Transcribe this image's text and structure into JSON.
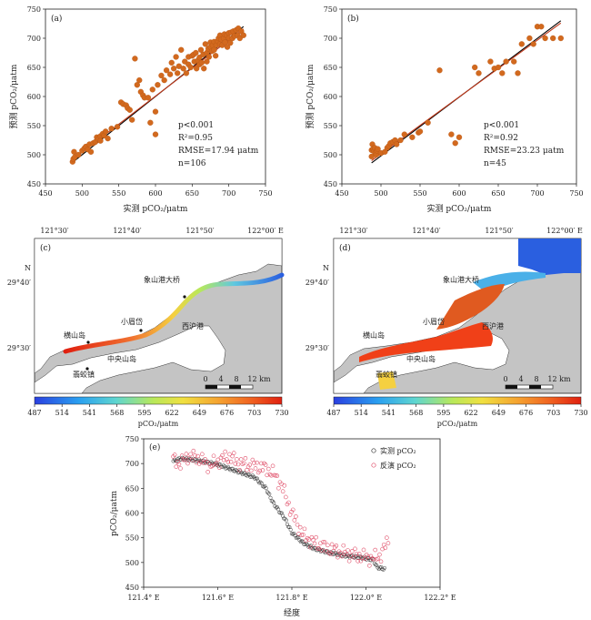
{
  "chart_data": [
    {
      "id": "a",
      "type": "scatter",
      "panel_label": "(a)",
      "xlabel": "实测 pCO₂/μatm",
      "ylabel": "预测 pCO₂/μatm",
      "xlim": [
        450,
        750
      ],
      "ylim": [
        450,
        750
      ],
      "xticks": [
        450,
        500,
        550,
        600,
        650,
        700,
        750
      ],
      "yticks": [
        450,
        500,
        550,
        600,
        650,
        700,
        750
      ],
      "stats": [
        "p<0.001",
        "R²=0.95",
        "RMSE=17.94 μatm",
        "n=106"
      ],
      "fit_lines": [
        {
          "color": "#000000",
          "x": [
            487,
            720
          ],
          "y": [
            487,
            720
          ]
        },
        {
          "color": "#c0391b",
          "x": [
            487,
            720
          ],
          "y": [
            492,
            716
          ]
        }
      ],
      "marker_color": "#d2691e",
      "points": [
        [
          487,
          488
        ],
        [
          488,
          493
        ],
        [
          490,
          496
        ],
        [
          489,
          505
        ],
        [
          495,
          500
        ],
        [
          500,
          507
        ],
        [
          503,
          511
        ],
        [
          505,
          514
        ],
        [
          508,
          509
        ],
        [
          510,
          518
        ],
        [
          512,
          505
        ],
        [
          515,
          520
        ],
        [
          518,
          522
        ],
        [
          520,
          530
        ],
        [
          522,
          527
        ],
        [
          525,
          532
        ],
        [
          525,
          524
        ],
        [
          528,
          536
        ],
        [
          530,
          533
        ],
        [
          532,
          540
        ],
        [
          535,
          528
        ],
        [
          540,
          545
        ],
        [
          548,
          548
        ],
        [
          553,
          590
        ],
        [
          556,
          587
        ],
        [
          560,
          585
        ],
        [
          562,
          580
        ],
        [
          565,
          577
        ],
        [
          568,
          560
        ],
        [
          572,
          665
        ],
        [
          575,
          620
        ],
        [
          578,
          628
        ],
        [
          580,
          608
        ],
        [
          583,
          602
        ],
        [
          585,
          598
        ],
        [
          590,
          598
        ],
        [
          593,
          555
        ],
        [
          596,
          612
        ],
        [
          600,
          574
        ],
        [
          600,
          535
        ],
        [
          603,
          620
        ],
        [
          608,
          636
        ],
        [
          612,
          628
        ],
        [
          615,
          645
        ],
        [
          620,
          638
        ],
        [
          622,
          658
        ],
        [
          625,
          648
        ],
        [
          628,
          668
        ],
        [
          630,
          640
        ],
        [
          632,
          652
        ],
        [
          635,
          680
        ],
        [
          638,
          648
        ],
        [
          640,
          660
        ],
        [
          642,
          640
        ],
        [
          645,
          668
        ],
        [
          645,
          655
        ],
        [
          648,
          650
        ],
        [
          650,
          670
        ],
        [
          652,
          672
        ],
        [
          653,
          660
        ],
        [
          655,
          675
        ],
        [
          656,
          648
        ],
        [
          658,
          662
        ],
        [
          660,
          667
        ],
        [
          660,
          655
        ],
        [
          662,
          680
        ],
        [
          663,
          658
        ],
        [
          665,
          672
        ],
        [
          666,
          648
        ],
        [
          668,
          690
        ],
        [
          670,
          660
        ],
        [
          670,
          675
        ],
        [
          672,
          682
        ],
        [
          673,
          668
        ],
        [
          675,
          685
        ],
        [
          675,
          693
        ],
        [
          677,
          678
        ],
        [
          678,
          688
        ],
        [
          680,
          694
        ],
        [
          680,
          680
        ],
        [
          682,
          670
        ],
        [
          683,
          688
        ],
        [
          685,
          695
        ],
        [
          686,
          700
        ],
        [
          688,
          690
        ],
        [
          688,
          705
        ],
        [
          690,
          698
        ],
        [
          691,
          688
        ],
        [
          693,
          700
        ],
        [
          694,
          707
        ],
        [
          695,
          693
        ],
        [
          697,
          705
        ],
        [
          698,
          685
        ],
        [
          700,
          709
        ],
        [
          700,
          700
        ],
        [
          702,
          692
        ],
        [
          703,
          710
        ],
        [
          705,
          700
        ],
        [
          706,
          712
        ],
        [
          708,
          704
        ],
        [
          710,
          714
        ],
        [
          712,
          705
        ],
        [
          713,
          717
        ],
        [
          715,
          700
        ],
        [
          717,
          712
        ],
        [
          720,
          705
        ]
      ]
    },
    {
      "id": "b",
      "type": "scatter",
      "panel_label": "(b)",
      "xlabel": "实测 pCO₂/μatm",
      "ylabel": "预测 pCO₂/μatm",
      "xlim": [
        450,
        750
      ],
      "ylim": [
        450,
        750
      ],
      "xticks": [
        450,
        500,
        550,
        600,
        650,
        700,
        750
      ],
      "yticks": [
        450,
        500,
        550,
        600,
        650,
        700,
        750
      ],
      "stats": [
        "p<0.001",
        "R²=0.92",
        "RMSE=23.23 μatm",
        "n=45"
      ],
      "fit_lines": [
        {
          "color": "#000000",
          "x": [
            488,
            730
          ],
          "y": [
            486,
            730
          ]
        },
        {
          "color": "#c0391b",
          "x": [
            488,
            730
          ],
          "y": [
            490,
            726
          ]
        }
      ],
      "marker_color": "#d2691e",
      "points": [
        [
          488,
          497
        ],
        [
          488,
          508
        ],
        [
          489,
          518
        ],
        [
          490,
          510
        ],
        [
          491,
          506
        ],
        [
          492,
          512
        ],
        [
          493,
          503
        ],
        [
          494,
          500
        ],
        [
          495,
          507
        ],
        [
          496,
          510
        ],
        [
          500,
          503
        ],
        [
          505,
          505
        ],
        [
          508,
          512
        ],
        [
          510,
          515
        ],
        [
          512,
          520
        ],
        [
          515,
          522
        ],
        [
          518,
          525
        ],
        [
          520,
          518
        ],
        [
          525,
          525
        ],
        [
          530,
          535
        ],
        [
          540,
          530
        ],
        [
          548,
          538
        ],
        [
          550,
          540
        ],
        [
          560,
          555
        ],
        [
          575,
          645
        ],
        [
          590,
          535
        ],
        [
          595,
          520
        ],
        [
          600,
          530
        ],
        [
          620,
          650
        ],
        [
          625,
          640
        ],
        [
          640,
          660
        ],
        [
          645,
          648
        ],
        [
          650,
          650
        ],
        [
          655,
          640
        ],
        [
          660,
          660
        ],
        [
          670,
          660
        ],
        [
          675,
          640
        ],
        [
          680,
          690
        ],
        [
          690,
          700
        ],
        [
          695,
          690
        ],
        [
          700,
          720
        ],
        [
          705,
          720
        ],
        [
          710,
          700
        ],
        [
          720,
          700
        ],
        [
          730,
          700
        ]
      ]
    },
    {
      "id": "e",
      "type": "scatter",
      "panel_label": "(e)",
      "xlabel": "经度",
      "ylabel": "pCO₂/μatm",
      "xlim": [
        121.4,
        122.2
      ],
      "ylim": [
        450,
        750
      ],
      "xticks": [
        121.4,
        121.6,
        121.8,
        122.0,
        122.2
      ],
      "xticklabels": [
        "121.4° E",
        "121.6° E",
        "121.8° E",
        "122.0° E",
        "122.2° E"
      ],
      "yticks": [
        450,
        500,
        550,
        600,
        650,
        700,
        750
      ],
      "series": [
        {
          "name": "实测 pCO₂",
          "color": "#333333"
        },
        {
          "name": "反演 pCO₂",
          "color": "#e0506a"
        }
      ],
      "measured_anchors": [
        [
          121.48,
          705
        ],
        [
          121.5,
          710
        ],
        [
          121.55,
          706
        ],
        [
          121.6,
          698
        ],
        [
          121.65,
          685
        ],
        [
          121.7,
          672
        ],
        [
          121.73,
          650
        ],
        [
          121.75,
          620
        ],
        [
          121.78,
          590
        ],
        [
          121.8,
          560
        ],
        [
          121.83,
          540
        ],
        [
          121.86,
          528
        ],
        [
          121.9,
          520
        ],
        [
          121.95,
          513
        ],
        [
          121.99,
          510
        ],
        [
          122.02,
          505
        ],
        [
          122.03,
          490
        ],
        [
          122.05,
          487
        ]
      ],
      "retrieved_anchors": [
        [
          121.48,
          708
        ],
        [
          121.5,
          700
        ],
        [
          121.52,
          715
        ],
        [
          121.55,
          710
        ],
        [
          121.58,
          695
        ],
        [
          121.6,
          705
        ],
        [
          121.63,
          715
        ],
        [
          121.66,
          700
        ],
        [
          121.7,
          695
        ],
        [
          121.73,
          690
        ],
        [
          121.75,
          680
        ],
        [
          121.77,
          660
        ],
        [
          121.8,
          600
        ],
        [
          121.83,
          555
        ],
        [
          121.86,
          540
        ],
        [
          121.9,
          528
        ],
        [
          121.95,
          518
        ],
        [
          121.99,
          512
        ],
        [
          122.02,
          508
        ],
        [
          122.04,
          515
        ],
        [
          122.06,
          545
        ]
      ]
    }
  ],
  "maps": {
    "c": {
      "panel_label": "(c)",
      "lon_ticks": [
        "121°30′",
        "121°40′",
        "121°50′",
        "122°00′ E"
      ],
      "lat_ticks": [
        "N",
        "29°40′",
        "29°30′"
      ],
      "places": [
        "象山港大桥",
        "小眉岱",
        "西沪港",
        "横山岛",
        "中央山岛",
        "翡蛟镇"
      ],
      "scale_ticks": [
        "0",
        "4",
        "8",
        "12 km"
      ]
    },
    "d": {
      "panel_label": "(d)",
      "lon_ticks": [
        "121°30′",
        "121°40′",
        "121°50′",
        "122°00′ E"
      ],
      "lat_ticks": [
        "N",
        "29°40′",
        "29°30′"
      ],
      "places": [
        "象山港大桥",
        "小眉岱",
        "西沪港",
        "横山岛",
        "中央山岛",
        "翡蛟镇"
      ],
      "scale_ticks": [
        "0",
        "4",
        "8",
        "12 km"
      ]
    }
  },
  "colorbar": {
    "ticks": [
      "487",
      "514",
      "541",
      "568",
      "595",
      "622",
      "649",
      "676",
      "703",
      "730"
    ],
    "label": "pCO₂/μatm"
  }
}
